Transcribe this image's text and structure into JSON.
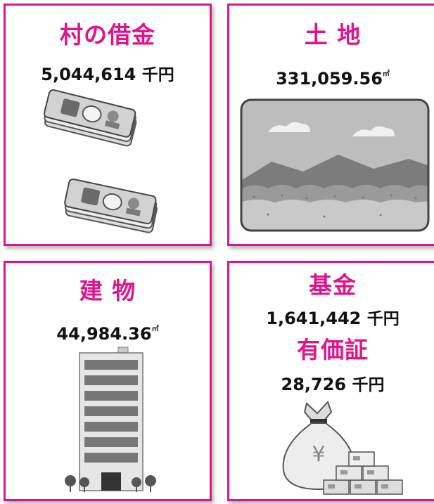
{
  "cards": {
    "debt": {
      "title": "村の借金",
      "value": "5,044,614",
      "unit": "千円"
    },
    "land": {
      "title": "土 地",
      "value": "331,059.56",
      "unit": "㎡"
    },
    "building": {
      "title": "建 物",
      "value": "44,984.36",
      "unit": "㎡"
    },
    "fund": {
      "title": "基金",
      "value": "1,641,442",
      "unit": "千円",
      "securities_title": "有価証",
      "securities_value": "28,726",
      "securities_unit": "千円"
    }
  },
  "colors": {
    "accent": "#e0148a",
    "text": "#111111"
  },
  "icons": [
    "banknote-bundle-icon",
    "banknote-bundle-icon",
    "landscape-icon",
    "office-building-icon",
    "money-bag-icon",
    "yen-bills-icon"
  ]
}
